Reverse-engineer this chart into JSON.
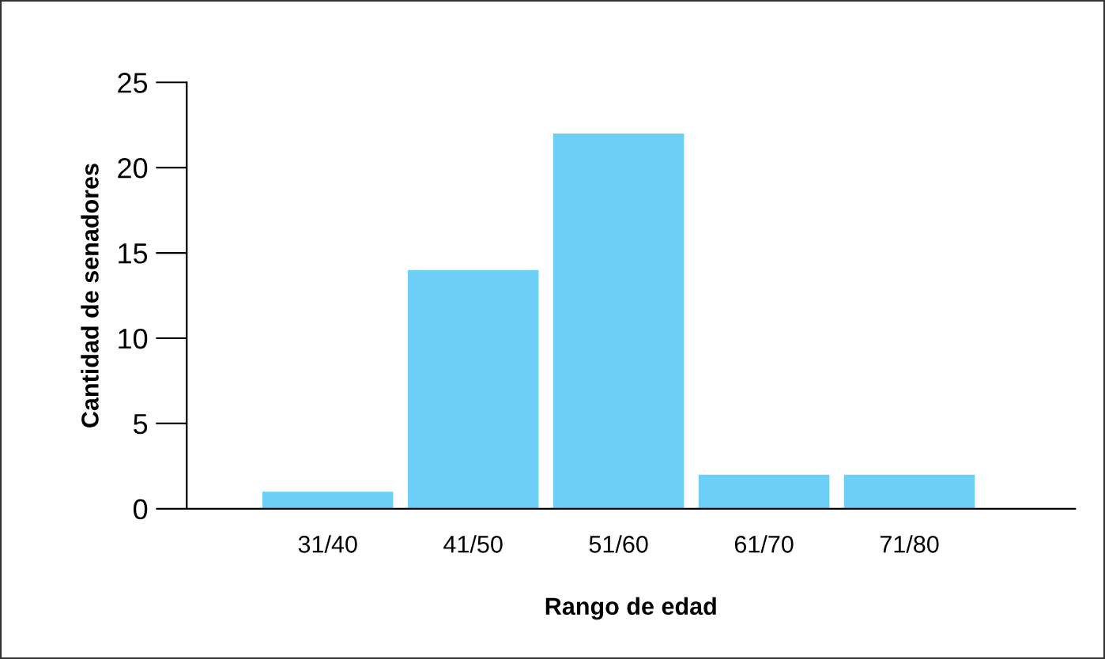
{
  "chart_data": {
    "type": "bar",
    "xlabel": "Rango de edad",
    "ylabel": "Cantidad de senadores",
    "categories": [
      "31/40",
      "41/50",
      "51/60",
      "61/70",
      "71/80"
    ],
    "values": [
      1,
      14,
      22,
      2,
      2
    ],
    "color": "#6dcff6",
    "ylim": [
      0,
      25
    ],
    "yticks": [
      0,
      5,
      10,
      15,
      20,
      25
    ],
    "grid": false
  }
}
